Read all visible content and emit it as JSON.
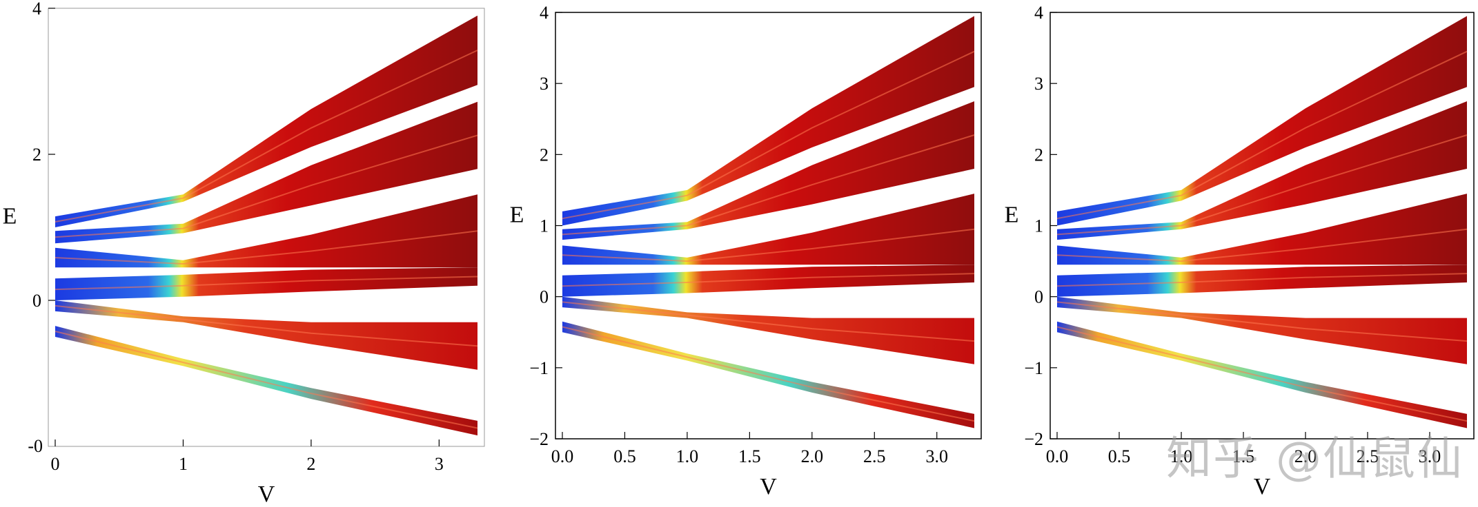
{
  "chart_data": [
    {
      "type": "area",
      "xlabel": "V",
      "ylabel": "E",
      "xlim": [
        0,
        3.3
      ],
      "ylim": [
        -2,
        4
      ],
      "xticks": [
        "0",
        "1",
        "2",
        "3"
      ],
      "yticks": [
        "0",
        "2",
        "4"
      ],
      "ybottom_label": "-0",
      "series": [
        {
          "name": "",
          "x": [
            0,
            1,
            2,
            3.3
          ],
          "upper": [
            1.15,
            1.45,
            2.62,
            3.9
          ],
          "lower": [
            1.0,
            1.35,
            2.1,
            2.95
          ]
        },
        {
          "name": "",
          "x": [
            0,
            1,
            2,
            3.3
          ],
          "upper": [
            0.95,
            1.05,
            1.85,
            2.72
          ],
          "lower": [
            0.78,
            0.92,
            1.3,
            1.8
          ]
        },
        {
          "name": "",
          "x": [
            0,
            1,
            2,
            3.3
          ],
          "upper": [
            0.72,
            0.55,
            0.9,
            1.45
          ],
          "lower": [
            0.45,
            0.45,
            0.45,
            0.45
          ]
        },
        {
          "name": "",
          "x": [
            0,
            1,
            2,
            3.3
          ],
          "upper": [
            0.3,
            0.35,
            0.42,
            0.45
          ],
          "lower": [
            0.0,
            0.05,
            0.12,
            0.2
          ]
        },
        {
          "name": "",
          "x": [
            0,
            1,
            2,
            3.3
          ],
          "upper": [
            0.0,
            -0.22,
            -0.3,
            -0.3
          ],
          "lower": [
            -0.15,
            -0.3,
            -0.6,
            -0.95
          ]
        },
        {
          "name": "",
          "x": [
            0,
            1,
            2,
            3.3
          ],
          "upper": [
            -0.35,
            -0.8,
            -1.2,
            -1.65
          ],
          "lower": [
            -0.5,
            -0.9,
            -1.35,
            -1.85
          ]
        }
      ]
    },
    {
      "type": "area",
      "xlabel": "V",
      "ylabel": "E",
      "xlim": [
        0,
        3.3
      ],
      "ylim": [
        -2,
        4
      ],
      "xticks": [
        "0.0",
        "0.5",
        "1.0",
        "1.5",
        "2.0",
        "2.5",
        "3.0"
      ],
      "yticks": [
        "−2",
        "−1",
        "0",
        "1",
        "2",
        "3",
        "4"
      ],
      "series": [
        {
          "name": "",
          "x": [
            0,
            1,
            2,
            3.3
          ],
          "upper": [
            1.2,
            1.5,
            2.65,
            3.95
          ],
          "lower": [
            1.0,
            1.35,
            2.1,
            2.95
          ]
        },
        {
          "name": "",
          "x": [
            0,
            1,
            2,
            3.3
          ],
          "upper": [
            0.95,
            1.05,
            1.85,
            2.75
          ],
          "lower": [
            0.8,
            0.95,
            1.3,
            1.8
          ]
        },
        {
          "name": "",
          "x": [
            0,
            1,
            2,
            3.3
          ],
          "upper": [
            0.72,
            0.55,
            0.9,
            1.45
          ],
          "lower": [
            0.45,
            0.45,
            0.45,
            0.45
          ]
        },
        {
          "name": "",
          "x": [
            0,
            1,
            2,
            3.3
          ],
          "upper": [
            0.3,
            0.35,
            0.42,
            0.45
          ],
          "lower": [
            0.0,
            0.05,
            0.12,
            0.2
          ]
        },
        {
          "name": "",
          "x": [
            0,
            1,
            2,
            3.3
          ],
          "upper": [
            0.0,
            -0.22,
            -0.3,
            -0.3
          ],
          "lower": [
            -0.15,
            -0.3,
            -0.6,
            -0.95
          ]
        },
        {
          "name": "",
          "x": [
            0,
            1,
            2,
            3.3
          ],
          "upper": [
            -0.35,
            -0.8,
            -1.2,
            -1.65
          ],
          "lower": [
            -0.5,
            -0.9,
            -1.35,
            -1.85
          ]
        }
      ]
    },
    {
      "type": "area",
      "xlabel": "V",
      "ylabel": "E",
      "xlim": [
        0,
        3.3
      ],
      "ylim": [
        -2,
        4
      ],
      "xticks": [
        "0.0",
        "0.5",
        "1.0",
        "1.5",
        "2.0",
        "2.5",
        "3.0"
      ],
      "yticks": [
        "−2",
        "−1",
        "0",
        "1",
        "2",
        "3",
        "4"
      ],
      "series": [
        {
          "name": "",
          "x": [
            0,
            1,
            2,
            3.3
          ],
          "upper": [
            1.2,
            1.5,
            2.65,
            3.95
          ],
          "lower": [
            1.0,
            1.35,
            2.1,
            2.95
          ]
        },
        {
          "name": "",
          "x": [
            0,
            1,
            2,
            3.3
          ],
          "upper": [
            0.95,
            1.05,
            1.85,
            2.75
          ],
          "lower": [
            0.8,
            0.95,
            1.3,
            1.8
          ]
        },
        {
          "name": "",
          "x": [
            0,
            1,
            2,
            3.3
          ],
          "upper": [
            0.72,
            0.55,
            0.9,
            1.45
          ],
          "lower": [
            0.45,
            0.45,
            0.45,
            0.45
          ]
        },
        {
          "name": "",
          "x": [
            0,
            1,
            2,
            3.3
          ],
          "upper": [
            0.3,
            0.35,
            0.42,
            0.45
          ],
          "lower": [
            0.0,
            0.05,
            0.12,
            0.2
          ]
        },
        {
          "name": "",
          "x": [
            0,
            1,
            2,
            3.3
          ],
          "upper": [
            0.0,
            -0.22,
            -0.3,
            -0.3
          ],
          "lower": [
            -0.15,
            -0.3,
            -0.6,
            -0.95
          ]
        },
        {
          "name": "",
          "x": [
            0,
            1,
            2,
            3.3
          ],
          "upper": [
            -0.35,
            -0.8,
            -1.2,
            -1.65
          ],
          "lower": [
            -0.5,
            -0.9,
            -1.35,
            -1.85
          ]
        }
      ]
    }
  ],
  "colors": {
    "low": "#1030e0",
    "mid": "#f0e020",
    "high": "#c80000",
    "dark": "#8a0000"
  },
  "watermark": "知乎 @仙鼠仙"
}
